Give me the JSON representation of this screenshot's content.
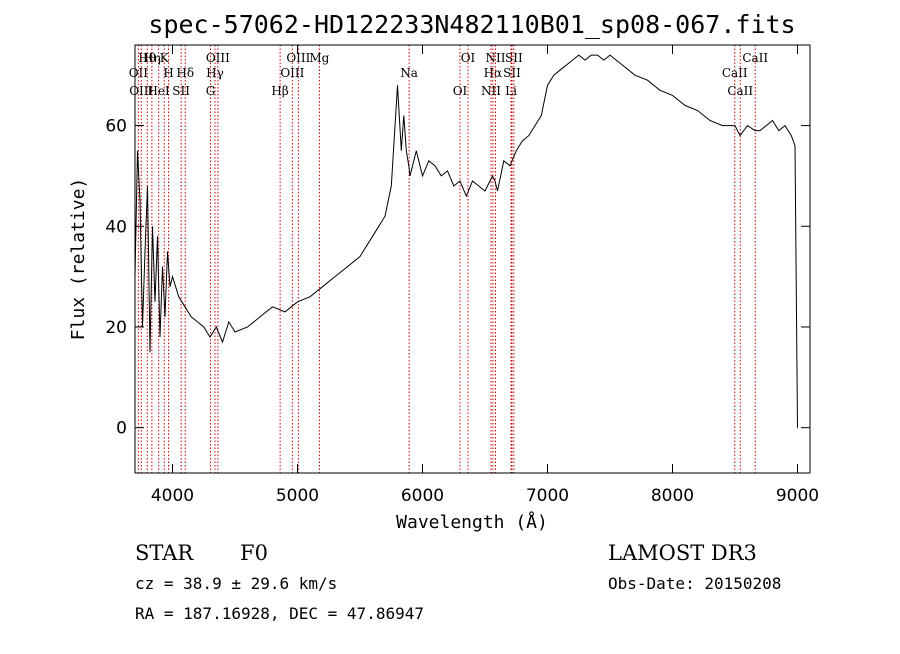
{
  "chart_data": {
    "type": "line",
    "title": "spec-57062-HD122233N482110B01_sp08-067.fits",
    "xlabel": "Wavelength (Å)",
    "ylabel": "Flux (relative)",
    "xlim": [
      3700,
      9100
    ],
    "ylim": [
      -9,
      76
    ],
    "xticks": [
      4000,
      5000,
      6000,
      7000,
      8000,
      9000
    ],
    "yticks": [
      0,
      20,
      40,
      60
    ],
    "grid": false,
    "series": [
      {
        "name": "flux",
        "x": [
          3700,
          3720,
          3740,
          3760,
          3780,
          3800,
          3820,
          3840,
          3860,
          3880,
          3900,
          3920,
          3940,
          3960,
          3980,
          4000,
          4050,
          4100,
          4150,
          4200,
          4250,
          4300,
          4350,
          4400,
          4450,
          4500,
          4600,
          4700,
          4800,
          4900,
          5000,
          5100,
          5200,
          5300,
          5400,
          5500,
          5600,
          5650,
          5700,
          5750,
          5800,
          5830,
          5850,
          5870,
          5890,
          5900,
          5950,
          6000,
          6050,
          6100,
          6150,
          6200,
          6250,
          6300,
          6350,
          6400,
          6450,
          6500,
          6540,
          6560,
          6580,
          6600,
          6650,
          6700,
          6750,
          6800,
          6850,
          6900,
          6950,
          7000,
          7050,
          7100,
          7150,
          7200,
          7250,
          7300,
          7350,
          7400,
          7450,
          7500,
          7600,
          7700,
          7800,
          7900,
          8000,
          8100,
          8200,
          8300,
          8400,
          8500,
          8540,
          8600,
          8660,
          8700,
          8750,
          8800,
          8850,
          8900,
          8950,
          8980,
          9000
        ],
        "y": [
          30,
          55,
          45,
          20,
          35,
          48,
          15,
          40,
          25,
          38,
          18,
          32,
          22,
          35,
          28,
          30,
          26,
          24,
          22,
          21,
          20,
          18,
          20,
          17,
          21,
          19,
          20,
          22,
          24,
          23,
          25,
          26,
          28,
          30,
          32,
          34,
          38,
          40,
          42,
          48,
          68,
          55,
          62,
          55,
          52,
          50,
          55,
          50,
          53,
          52,
          50,
          51,
          48,
          49,
          46,
          49,
          48,
          47,
          49,
          50,
          49,
          47,
          53,
          52,
          55,
          57,
          58,
          60,
          62,
          68,
          70,
          71,
          72,
          73,
          74,
          73,
          74,
          74,
          73,
          74,
          72,
          70,
          69,
          67,
          66,
          64,
          63,
          61,
          60,
          60,
          58,
          60,
          59,
          59,
          60,
          61,
          59,
          60,
          58,
          56,
          0
        ]
      }
    ],
    "annotation_lines": [
      {
        "label": "Hθ",
        "x": 3798
      },
      {
        "label": "OII",
        "x": 3727
      },
      {
        "label": "OIII",
        "x": 3750
      },
      {
        "label": "K",
        "x": 3934
      },
      {
        "label": "H",
        "x": 3969
      },
      {
        "label": "HeI",
        "x": 3889
      },
      {
        "label": "Hη",
        "x": 3835
      },
      {
        "label": "Hδ",
        "x": 4102
      },
      {
        "label": "SII",
        "x": 4069
      },
      {
        "label": "OIII",
        "x": 4363
      },
      {
        "label": "Hγ",
        "x": 4340
      },
      {
        "label": "G",
        "x": 4304
      },
      {
        "label": "OIII",
        "x": 5007
      },
      {
        "label": "OIII",
        "x": 4959
      },
      {
        "label": "Hβ",
        "x": 4861
      },
      {
        "label": "Mg",
        "x": 5175
      },
      {
        "label": "Na",
        "x": 5893
      },
      {
        "label": "OI",
        "x": 6300
      },
      {
        "label": "OI",
        "x": 6364
      },
      {
        "label": "Hα",
        "x": 6563
      },
      {
        "label": "NII",
        "x": 6548
      },
      {
        "label": "NII",
        "x": 6584
      },
      {
        "label": "SII",
        "x": 6716
      },
      {
        "label": "Li",
        "x": 6708
      },
      {
        "label": "SII",
        "x": 6731
      },
      {
        "label": "CaII",
        "x": 8498
      },
      {
        "label": "CaII",
        "x": 8542
      },
      {
        "label": "CaII",
        "x": 8662
      }
    ]
  },
  "info": {
    "object_class": "STAR",
    "subclass": "F0",
    "survey": "LAMOST DR3",
    "cz": "cz = 38.9 ± 29.6 km/s",
    "obs_date": "Obs-Date: 20150208",
    "coords": "RA = 187.16928, DEC =  47.86947"
  },
  "colors": {
    "line_marker": "#cc0000",
    "spectrum": "#000000",
    "axis": "#000000"
  }
}
